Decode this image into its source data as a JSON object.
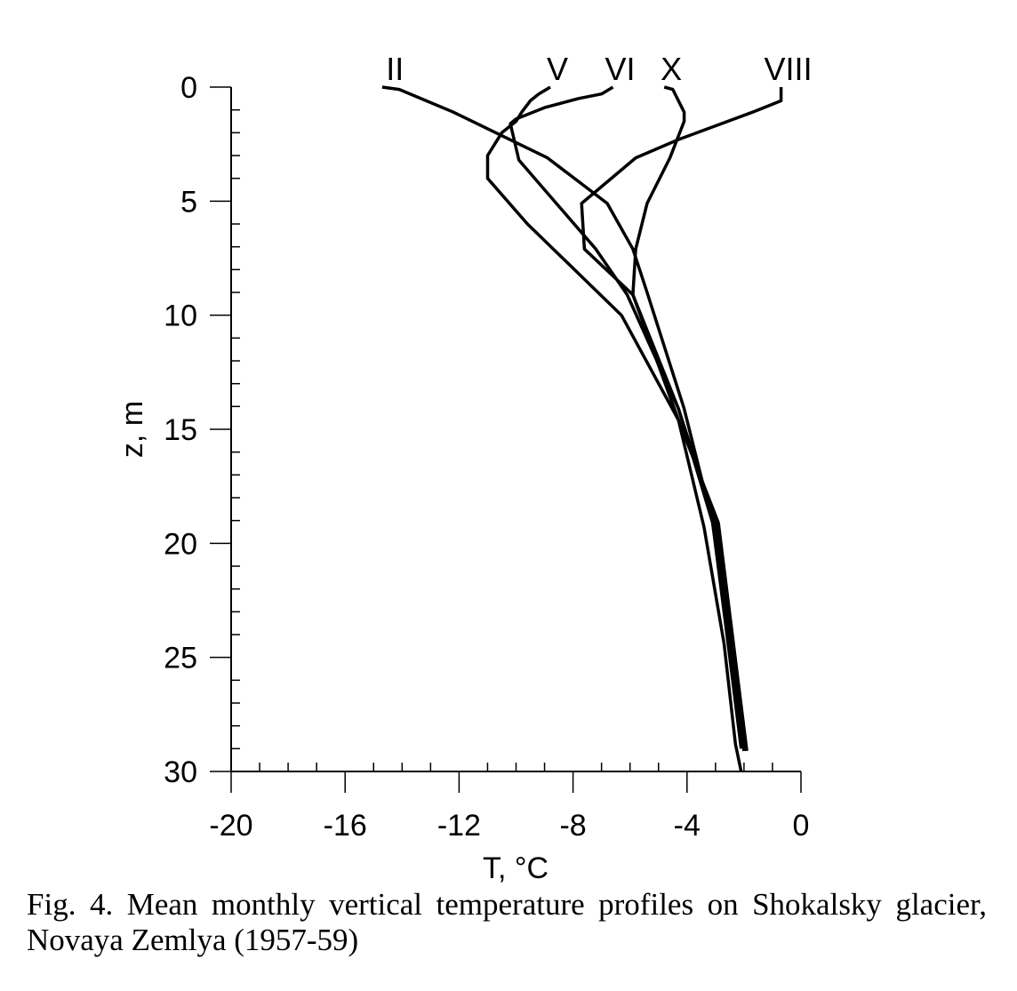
{
  "chart_data": {
    "type": "line",
    "title": "",
    "xlabel": "T, °C",
    "ylabel": "z, m",
    "xlim": [
      -20,
      0
    ],
    "ylim": [
      0,
      30
    ],
    "y_inverted": true,
    "x_ticks": [
      "-20",
      "-16",
      "-12",
      "-8",
      "-4",
      "0"
    ],
    "y_ticks": [
      "0",
      "5",
      "10",
      "15",
      "20",
      "25",
      "30"
    ],
    "grid": false,
    "legend": "none",
    "series": [
      {
        "name": "II",
        "label_at": [
          -14.5,
          0
        ],
        "points": [
          [
            -14.7,
            0
          ],
          [
            -14.1,
            0.1
          ],
          [
            -12.2,
            1.1
          ],
          [
            -8.9,
            3.1
          ],
          [
            -6.8,
            5.1
          ],
          [
            -5.9,
            7.1
          ],
          [
            -5.4,
            9.0
          ],
          [
            -4.1,
            14.1
          ],
          [
            -3.1,
            19.1
          ],
          [
            -2.6,
            24.0
          ],
          [
            -2.1,
            29.0
          ]
        ]
      },
      {
        "name": "V",
        "label_at": [
          -8.8,
          0
        ],
        "points": [
          [
            -8.8,
            0
          ],
          [
            -9.2,
            0.3
          ],
          [
            -9.5,
            0.6
          ],
          [
            -9.8,
            1.1
          ],
          [
            -10.0,
            1.5
          ],
          [
            -10.5,
            2.0
          ],
          [
            -10.7,
            2.4
          ],
          [
            -11.0,
            3.0
          ],
          [
            -11.0,
            4.0
          ],
          [
            -9.6,
            6.0
          ],
          [
            -6.3,
            10.0
          ],
          [
            -4.3,
            14.6
          ],
          [
            -3.4,
            19.3
          ],
          [
            -2.7,
            24.4
          ],
          [
            -2.3,
            28.8
          ],
          [
            -2.1,
            30
          ]
        ]
      },
      {
        "name": "VI",
        "label_at": [
          -6.6,
          0
        ],
        "points": [
          [
            -6.6,
            0
          ],
          [
            -7.0,
            0.3
          ],
          [
            -7.8,
            0.5
          ],
          [
            -9.0,
            0.9
          ],
          [
            -10.0,
            1.4
          ],
          [
            -10.2,
            1.6
          ],
          [
            -9.9,
            3.2
          ],
          [
            -7.2,
            7.1
          ],
          [
            -6.1,
            9.1
          ],
          [
            -4.3,
            14.1
          ],
          [
            -3.1,
            19.1
          ],
          [
            -2.5,
            24.1
          ],
          [
            -2.0,
            29.1
          ]
        ]
      },
      {
        "name": "X",
        "label_at": [
          -4.8,
          0
        ],
        "points": [
          [
            -4.8,
            0
          ],
          [
            -4.5,
            0.1
          ],
          [
            -4.1,
            1.1
          ],
          [
            -4.1,
            1.5
          ],
          [
            -4.6,
            3.1
          ],
          [
            -5.4,
            5.1
          ],
          [
            -5.8,
            7.1
          ],
          [
            -5.9,
            9.1
          ],
          [
            -4.3,
            14.1
          ],
          [
            -3.0,
            19.1
          ],
          [
            -2.5,
            24.1
          ],
          [
            -2.0,
            29.1
          ]
        ]
      },
      {
        "name": "VIII",
        "label_at": [
          -0.7,
          0
        ],
        "points": [
          [
            -0.7,
            0
          ],
          [
            -0.7,
            0.6
          ],
          [
            -1.7,
            1.1
          ],
          [
            -4.3,
            2.3
          ],
          [
            -5.8,
            3.1
          ],
          [
            -7.7,
            5.1
          ],
          [
            -7.6,
            7.1
          ],
          [
            -5.9,
            9.1
          ],
          [
            -4.3,
            14.6
          ],
          [
            -2.9,
            19.1
          ],
          [
            -2.4,
            24.1
          ],
          [
            -1.9,
            29.1
          ]
        ]
      }
    ]
  },
  "caption": "Fig. 4. Mean monthly vertical temperature profiles on Shokalsky glacier, Novaya Zemlya (1957-59)"
}
